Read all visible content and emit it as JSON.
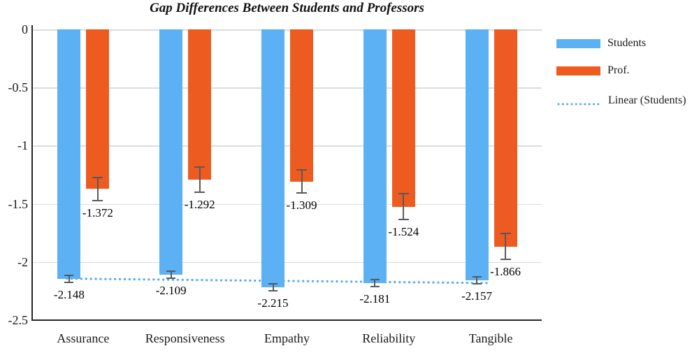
{
  "chart_data": {
    "type": "bar",
    "title": "Gap Differences Between Students and Professors",
    "orientation": "vertical-negative",
    "categories": [
      "Assurance",
      "Responsiveness",
      "Empathy",
      "Reliability",
      "Tangible"
    ],
    "series": [
      {
        "name": "Students",
        "color": "#5CB1F5",
        "values": [
          -2.148,
          -2.109,
          -2.215,
          -2.181,
          -2.157
        ],
        "errors": [
          0.03,
          0.03,
          0.03,
          0.03,
          0.03
        ],
        "labels": [
          "-2.148",
          "-2.109",
          "-2.215",
          "-2.181",
          "-2.157"
        ]
      },
      {
        "name": "Prof.",
        "color": "#EE5B21",
        "values": [
          -1.372,
          -1.292,
          -1.309,
          -1.524,
          -1.866
        ],
        "errors": [
          0.1,
          0.11,
          0.1,
          0.11,
          0.11
        ],
        "labels": [
          "-1.372",
          "-1.292",
          "-1.309",
          "-1.524",
          "-1.866"
        ]
      }
    ],
    "trendline": {
      "label": "Linear (Students)",
      "series": "Students",
      "style": "dotted",
      "color": "#55A9F0",
      "start_value": -2.143,
      "end_value": -2.181
    },
    "y_axis": {
      "min": -2.5,
      "max": 0,
      "ticks": [
        {
          "label": "0",
          "value": 0
        },
        {
          "label": "-0.5",
          "value": -0.5
        },
        {
          "label": "-1",
          "value": -1
        },
        {
          "label": "-1.5",
          "value": -1.5
        },
        {
          "label": "-2",
          "value": -2
        },
        {
          "label": "-2.5",
          "value": -2.5
        }
      ]
    },
    "grid": true,
    "legend_position": "right",
    "error_bar_color": "#595959"
  }
}
